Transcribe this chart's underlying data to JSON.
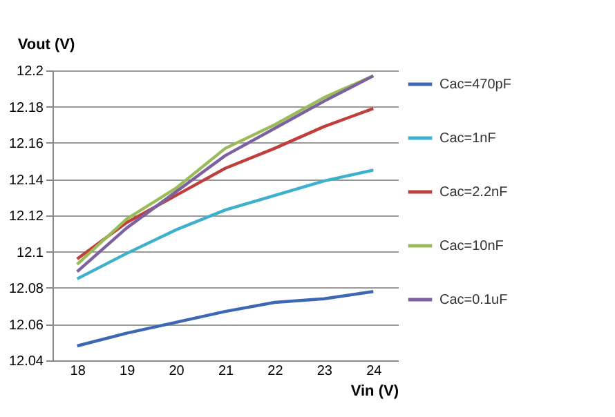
{
  "chart_data": {
    "type": "line",
    "xlabel": "Vin (V)",
    "ylabel": "Vout (V)",
    "categories": [
      "18",
      "19",
      "20",
      "21",
      "22",
      "23",
      "24"
    ],
    "ylim": [
      12.04,
      12.2
    ],
    "yticks": [
      12.04,
      12.06,
      12.08,
      12.1,
      12.12,
      12.14,
      12.16,
      12.18,
      12.2
    ],
    "grid": "y",
    "legend": "right",
    "marker": "none",
    "line_style": "solid",
    "series": [
      {
        "name": "Cac=470pF",
        "color": "#3d67b5",
        "values": [
          12.048,
          12.055,
          12.061,
          12.067,
          12.072,
          12.074,
          12.078
        ]
      },
      {
        "name": "Cac=1nF",
        "color": "#3cb0cc",
        "values": [
          12.085,
          12.099,
          12.112,
          12.123,
          12.131,
          12.139,
          12.145
        ]
      },
      {
        "name": "Cac=2.2nF",
        "color": "#be3f3c",
        "values": [
          12.096,
          12.116,
          12.131,
          12.146,
          12.157,
          12.169,
          12.179
        ]
      },
      {
        "name": "Cac=10nF",
        "color": "#9bbb59",
        "values": [
          12.093,
          12.118,
          12.135,
          12.157,
          12.17,
          12.185,
          12.197
        ]
      },
      {
        "name": "Cac=0.1uF",
        "color": "#7d60a0",
        "values": [
          12.089,
          12.113,
          12.133,
          12.153,
          12.168,
          12.183,
          12.197
        ]
      }
    ]
  }
}
